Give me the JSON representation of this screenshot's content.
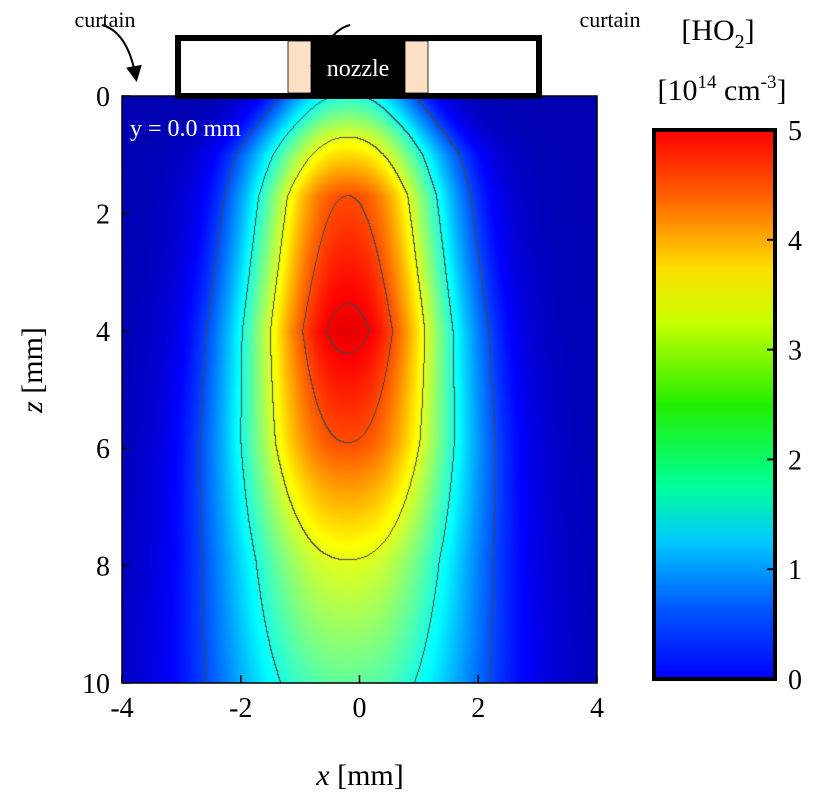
{
  "chart_data": {
    "type": "heatmap",
    "annotation": "y = 0.0 mm",
    "xlabel_var": "x",
    "xlabel_unit": " [mm]",
    "ylabel_var": "z",
    "ylabel_unit": " [mm]",
    "xlim": [
      -4,
      4
    ],
    "ylim": [
      0,
      10
    ],
    "y_inverted": true,
    "xticks": [
      "-4",
      "-2",
      "0",
      "2",
      "4"
    ],
    "yticks": [
      "0",
      "2",
      "4",
      "6",
      "8",
      "10"
    ],
    "colorbar": {
      "title": "[HO",
      "title_sub": "2",
      "title_end": "]",
      "unit_pre": "[10",
      "unit_exp": "14",
      "unit_mid": " cm",
      "unit_exp2": "-3",
      "unit_end": "]",
      "range": [
        0,
        5
      ],
      "ticks": [
        "5",
        "4",
        "3",
        "2",
        "1",
        "0"
      ],
      "colormap": "jet"
    },
    "contour_levels": [
      1,
      2,
      3,
      4,
      4.4
    ],
    "peak": {
      "x": -0.2,
      "z": 4.0,
      "value": 4.5
    },
    "nozzle_diagram": {
      "nozzle_label": "nozzle",
      "curtain_left": "curtain",
      "curtain_right": "curtain",
      "nozzle_color": "#000000",
      "wall_color": "#FCE0C4"
    }
  }
}
